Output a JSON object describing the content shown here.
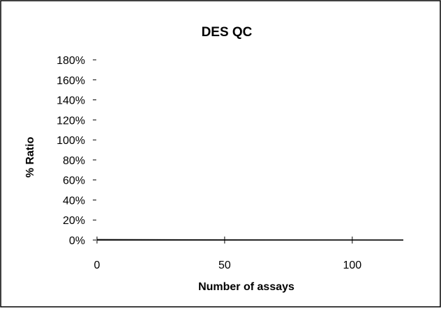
{
  "chart_data": {
    "type": "line",
    "title": "DES QC",
    "xlabel": "Number of assays",
    "ylabel": "% Ratio",
    "xlim": [
      0,
      120
    ],
    "ylim": [
      0,
      1.8
    ],
    "x_ticks": [
      0,
      50,
      100
    ],
    "x_tick_labels": [
      "0",
      "50",
      "100"
    ],
    "y_ticks": [
      0,
      0.2,
      0.4,
      0.6,
      0.8,
      1.0,
      1.2,
      1.4,
      1.6,
      1.8
    ],
    "y_tick_labels": [
      "0%",
      "20%",
      "40%",
      "60%",
      "80%",
      "100%",
      "120%",
      "140%",
      "160%",
      "180%"
    ],
    "grid": false,
    "legend": "none",
    "colors": {
      "axis": "#000000",
      "frame": "#000000",
      "background": "#ffffff"
    },
    "series": [
      {
        "x": [
          0,
          120
        ],
        "y": [
          0.005,
          0.0
        ]
      }
    ]
  }
}
